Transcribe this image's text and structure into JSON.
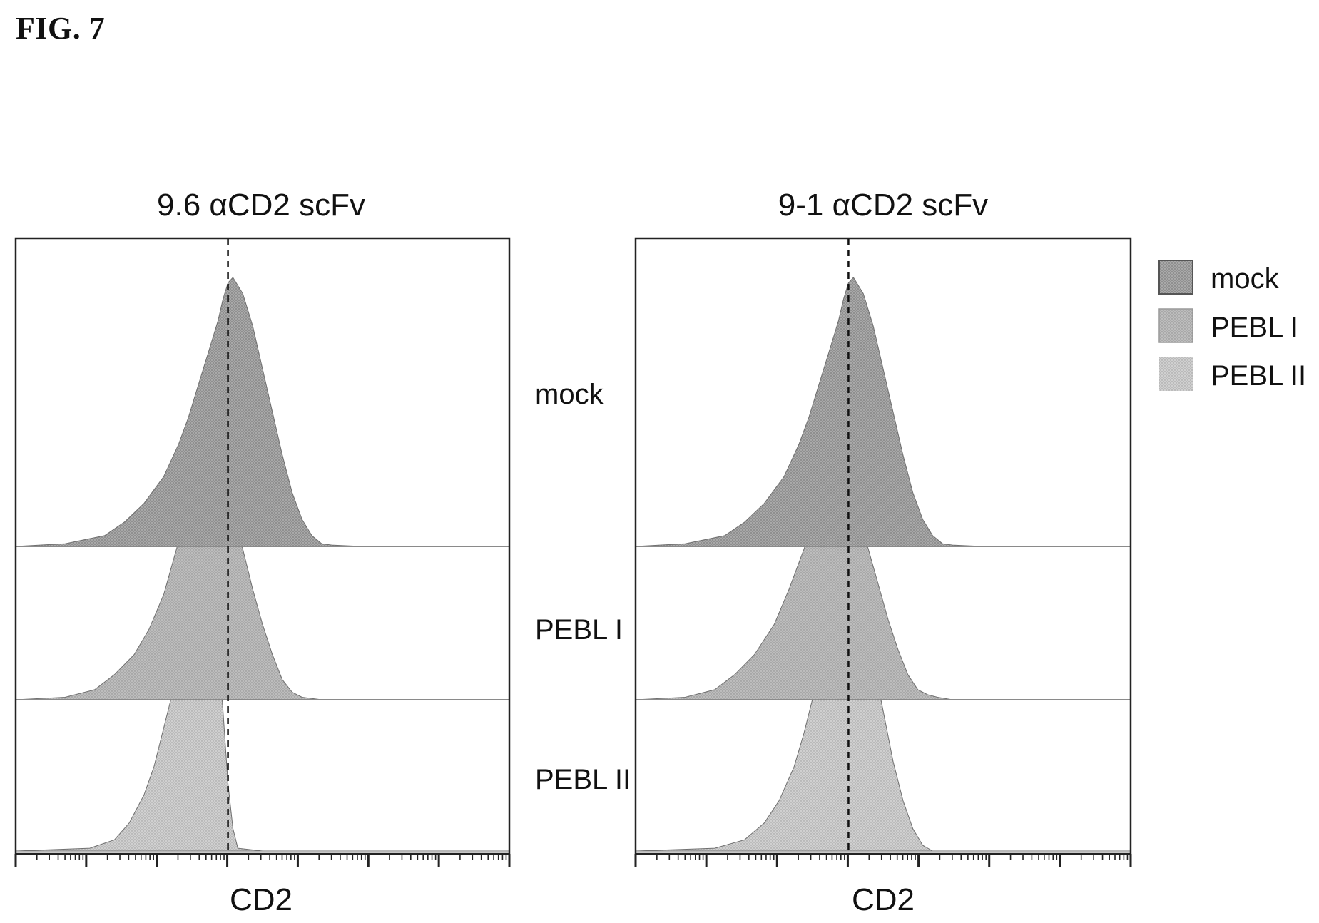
{
  "figure_label": "FIG. 7",
  "colors": {
    "mock": "#9b9b9b",
    "pebl1": "#c4c4c4",
    "pebl2": "#cfcfcf",
    "outline": "#6f6f6f",
    "frame": "#222222",
    "dashed": "#111111"
  },
  "row_labels": [
    "mock",
    "PEBL I",
    "PEBL II"
  ],
  "legend": [
    {
      "label": "mock",
      "series": "mock"
    },
    {
      "label": "PEBL I",
      "series": "pebl1"
    },
    {
      "label": "PEBL II",
      "series": "pebl2"
    }
  ],
  "chart_data": [
    {
      "type": "area",
      "title": "9.6 αCD2 scFv",
      "xlabel": "CD2",
      "ylabel": "",
      "xscale": "log",
      "xlim": [
        0,
        100
      ],
      "ylim": [
        0,
        1
      ],
      "grid": false,
      "reference_line_x": 43,
      "series": [
        {
          "name": "mock",
          "row": 0,
          "x": [
            0,
            10,
            18,
            22,
            26,
            30,
            33,
            35,
            37,
            39,
            41,
            42,
            43,
            44,
            46,
            48,
            50,
            52,
            54,
            56,
            58,
            60,
            62,
            64,
            70,
            100
          ],
          "y": [
            0,
            0.01,
            0.04,
            0.09,
            0.16,
            0.26,
            0.38,
            0.48,
            0.6,
            0.72,
            0.84,
            0.92,
            0.98,
            1.0,
            0.94,
            0.82,
            0.66,
            0.5,
            0.34,
            0.2,
            0.1,
            0.04,
            0.01,
            0.005,
            0,
            0
          ]
        },
        {
          "name": "PEBL I",
          "row": 1,
          "x": [
            0,
            10,
            16,
            20,
            24,
            27,
            30,
            32,
            34,
            36,
            37,
            38,
            39,
            40,
            41,
            42,
            44,
            46,
            48,
            50,
            52,
            54,
            56,
            58,
            62,
            100
          ],
          "y": [
            0,
            0.01,
            0.04,
            0.1,
            0.18,
            0.28,
            0.42,
            0.56,
            0.7,
            0.82,
            0.88,
            0.94,
            0.98,
            1.0,
            0.97,
            0.9,
            0.76,
            0.6,
            0.44,
            0.3,
            0.18,
            0.08,
            0.03,
            0.01,
            0,
            0
          ]
        },
        {
          "name": "PEBL II",
          "row": 2,
          "x": [
            0,
            15,
            20,
            23,
            26,
            28,
            30,
            32,
            34,
            35,
            36,
            37,
            38,
            39,
            40,
            41,
            42,
            43,
            44,
            45,
            50,
            100
          ],
          "y": [
            0,
            0.01,
            0.04,
            0.1,
            0.2,
            0.3,
            0.44,
            0.58,
            0.72,
            0.8,
            0.86,
            0.92,
            0.97,
            1.0,
            0.9,
            0.74,
            0.5,
            0.24,
            0.08,
            0.01,
            0,
            0
          ]
        }
      ]
    },
    {
      "type": "area",
      "title": "9-1 αCD2 scFv",
      "xlabel": "CD2",
      "ylabel": "",
      "xscale": "log",
      "xlim": [
        0,
        100
      ],
      "ylim": [
        0,
        1
      ],
      "grid": false,
      "reference_line_x": 43,
      "series": [
        {
          "name": "mock",
          "row": 0,
          "x": [
            0,
            10,
            18,
            22,
            26,
            30,
            33,
            35,
            37,
            39,
            41,
            42,
            43,
            44,
            46,
            48,
            50,
            52,
            54,
            56,
            58,
            60,
            62,
            64,
            70,
            100
          ],
          "y": [
            0,
            0.01,
            0.04,
            0.09,
            0.16,
            0.26,
            0.38,
            0.48,
            0.6,
            0.72,
            0.84,
            0.92,
            0.98,
            1.0,
            0.94,
            0.82,
            0.66,
            0.5,
            0.34,
            0.2,
            0.1,
            0.04,
            0.01,
            0.005,
            0,
            0
          ]
        },
        {
          "name": "PEBL I",
          "row": 1,
          "x": [
            0,
            10,
            16,
            20,
            24,
            28,
            31,
            34,
            36,
            38,
            39,
            40,
            41,
            42,
            43,
            45,
            47,
            49,
            51,
            53,
            55,
            57,
            59,
            61,
            64,
            100
          ],
          "y": [
            0,
            0.01,
            0.04,
            0.1,
            0.18,
            0.3,
            0.44,
            0.6,
            0.72,
            0.84,
            0.9,
            0.96,
            1.0,
            0.96,
            0.88,
            0.74,
            0.6,
            0.46,
            0.32,
            0.2,
            0.1,
            0.04,
            0.02,
            0.01,
            0,
            0
          ]
        },
        {
          "name": "PEBL II",
          "row": 2,
          "x": [
            0,
            16,
            22,
            26,
            29,
            32,
            34,
            36,
            38,
            39,
            40,
            41,
            42,
            43,
            44,
            46,
            48,
            50,
            52,
            54,
            56,
            58,
            60,
            100
          ],
          "y": [
            0,
            0.01,
            0.04,
            0.1,
            0.18,
            0.3,
            0.42,
            0.56,
            0.72,
            0.8,
            0.88,
            0.94,
            0.98,
            1.0,
            0.96,
            0.84,
            0.68,
            0.5,
            0.32,
            0.18,
            0.08,
            0.02,
            0,
            0
          ]
        }
      ]
    }
  ]
}
